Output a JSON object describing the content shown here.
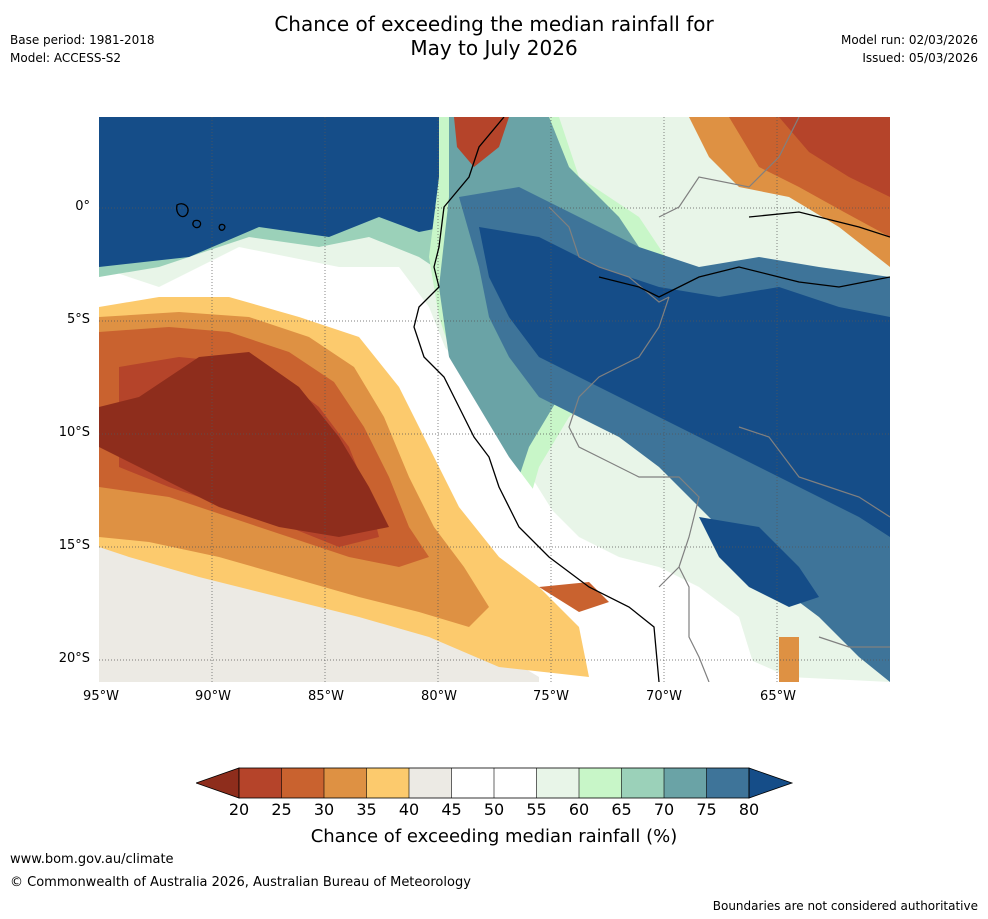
{
  "header": {
    "title_line1": "Chance of exceeding the median rainfall for",
    "title_line2": "May to July 2026",
    "base_period": "Base period: 1981-2018",
    "model": "Model: ACCESS-S2",
    "model_run": "Model run: 02/03/2026",
    "issued": "Issued: 05/03/2026"
  },
  "map": {
    "lat_labels": [
      "0°",
      "5°S",
      "10°S",
      "15°S",
      "20°S"
    ],
    "lon_labels": [
      "95°W",
      "90°W",
      "85°W",
      "80°W",
      "75°W",
      "70°W",
      "65°W"
    ],
    "colors": {
      "c20": "#8e2d1c",
      "c25": "#b5442a",
      "c30": "#c9622f",
      "c35": "#de9143",
      "c40": "#fcca6d",
      "c45": "#eceae4",
      "c50": "#ffffff",
      "c55": "#ffffff",
      "c60": "#e8f5e8",
      "c65": "#c8f6c8",
      "c70": "#9bd1b9",
      "c75": "#6aa3a6",
      "c80": "#3e7499",
      "c85": "#154d88",
      "coast": "#000000",
      "border": "#808080"
    }
  },
  "colorbar": {
    "ticks": [
      "20",
      "25",
      "30",
      "35",
      "40",
      "45",
      "50",
      "55",
      "60",
      "65",
      "70",
      "75",
      "80"
    ],
    "title": "Chance of exceeding median rainfall (%)"
  },
  "footer": {
    "url": "www.bom.gov.au/climate",
    "copyright": "© Commonwealth of Australia 2026, Australian Bureau of Meteorology",
    "disclaimer": "Boundaries are not considered authoritative"
  }
}
